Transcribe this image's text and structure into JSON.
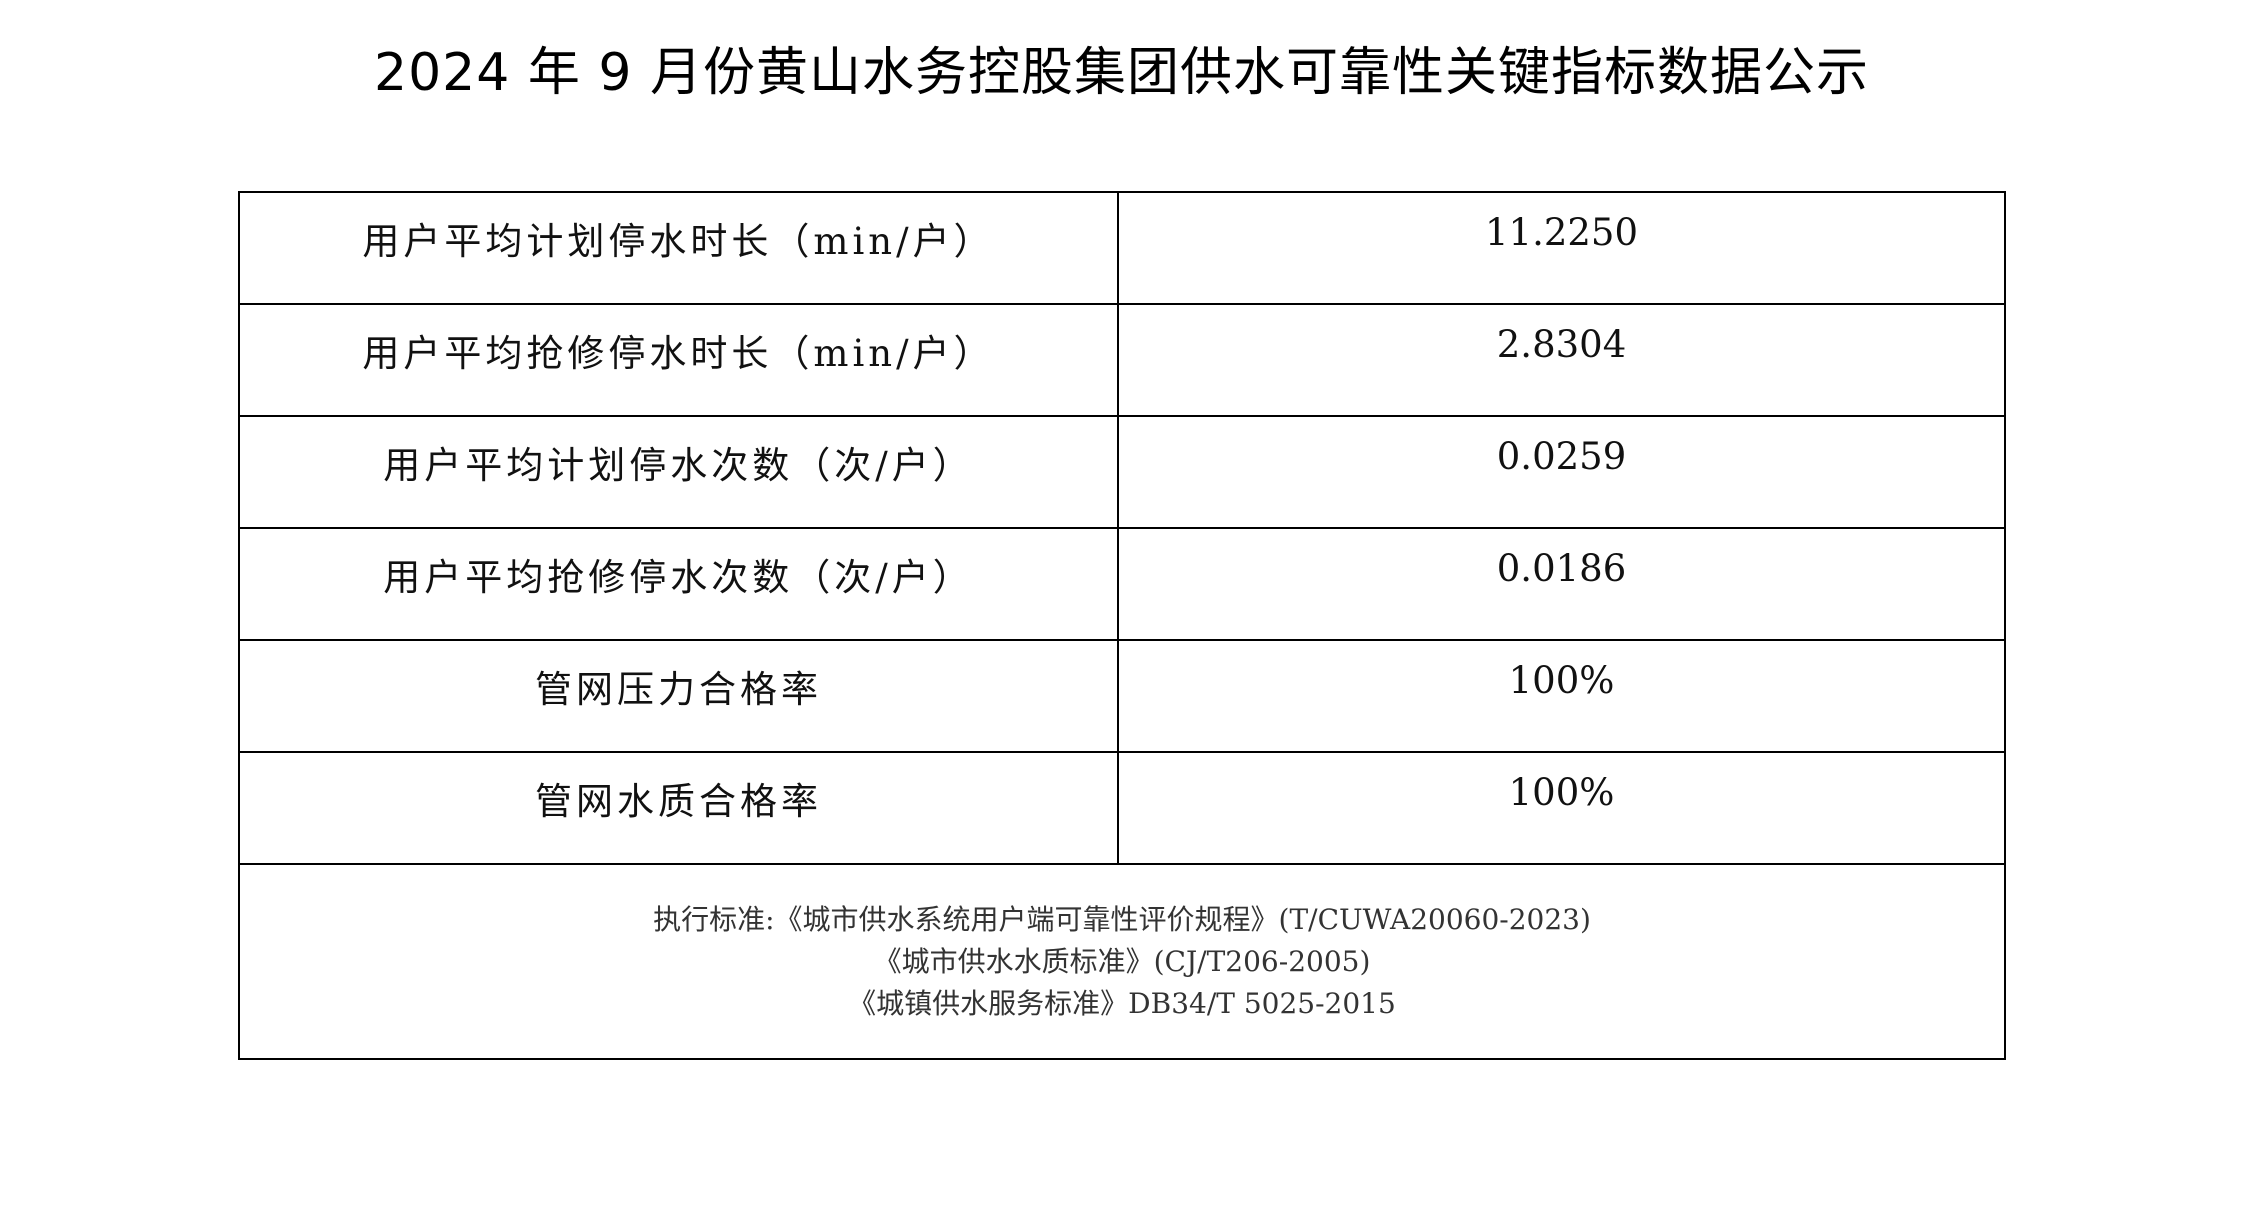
{
  "title": "2024 年 9 月份黄山水务控股集团供水可靠性关键指标数据公示",
  "rows": [
    {
      "label": "用户平均计划停水时长（min/户）",
      "value": "11.2250"
    },
    {
      "label": "用户平均抢修停水时长（min/户）",
      "value": "2.8304"
    },
    {
      "label": "用户平均计划停水次数（次/户）",
      "value": "0.0259"
    },
    {
      "label": "用户平均抢修停水次数（次/户）",
      "value": "0.0186"
    },
    {
      "label": "管网压力合格率",
      "value": "100%"
    },
    {
      "label": "管网水质合格率",
      "value": "100%"
    }
  ],
  "notes": [
    "执行标准:《城市供水系统用户端可靠性评价规程》(T/CUWA20060-2023)",
    "《城市供水水质标准》(CJ/T206-2005)",
    "《城镇供水服务标准》DB34/T 5025-2015"
  ]
}
